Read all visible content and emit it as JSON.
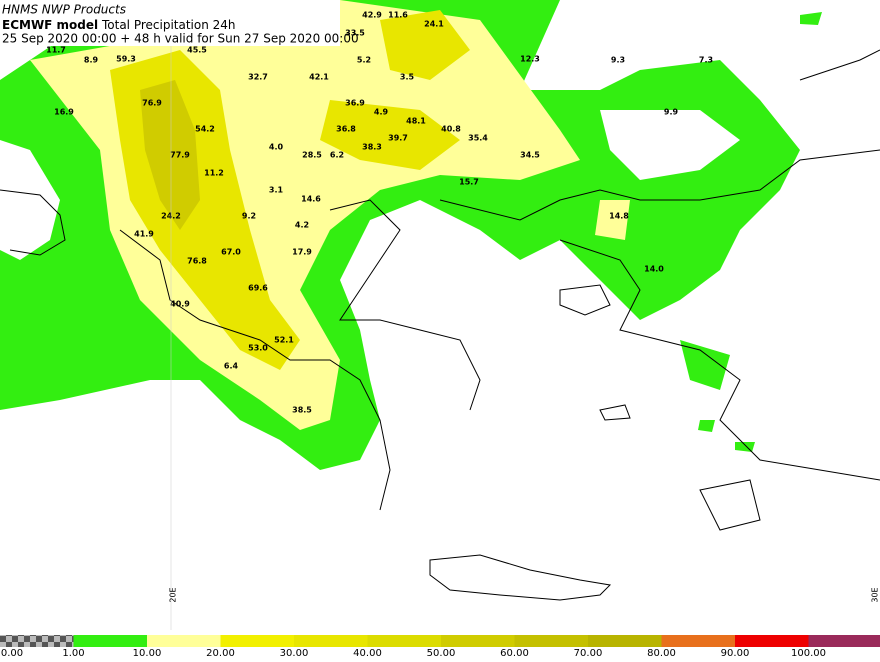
{
  "header": {
    "source": "HNMS NWP Products",
    "model": "ECMWF model",
    "product": "Total Precipitation 24h",
    "valid": "25 Sep 2020 00:00 + 48 h valid for Sun 27 Sep 2020 00:00"
  },
  "map": {
    "values": [
      "42.9",
      "11.6",
      "24.1",
      "33.5",
      "11.7",
      "45.5",
      "8.9",
      "59.3",
      "5.2",
      "12.3",
      "9.3",
      "7.3",
      "32.7",
      "42.1",
      "3.5",
      "76.9",
      "36.9",
      "16.9",
      "4.9",
      "9.9",
      "48.1",
      "54.2",
      "36.8",
      "40.8",
      "39.7",
      "35.4",
      "4.0",
      "38.3",
      "77.9",
      "28.5",
      "6.2",
      "34.5",
      "11.2",
      "15.7",
      "3.1",
      "14.6",
      "24.2",
      "9.2",
      "14.8",
      "4.2",
      "41.9",
      "67.0",
      "17.9",
      "76.8",
      "14.0",
      "69.6",
      "40.9",
      "52.1",
      "53.0",
      "6.4",
      "38.5"
    ],
    "longitudes": [
      "20E",
      "30E"
    ]
  },
  "legend": {
    "labels": [
      "0.00",
      "1.00",
      "10.00",
      "20.00",
      "30.00",
      "40.00",
      "50.00",
      "60.00",
      "70.00",
      "80.00",
      "90.00",
      "100.00"
    ],
    "colors": [
      "#33ee11",
      "#ffff99",
      "#f2f000",
      "#e8e600",
      "#dcdc00",
      "#d0cc00",
      "#c4c000",
      "#b8b400",
      "#e8701c",
      "#ee0000",
      "#9a2a5a"
    ]
  }
}
